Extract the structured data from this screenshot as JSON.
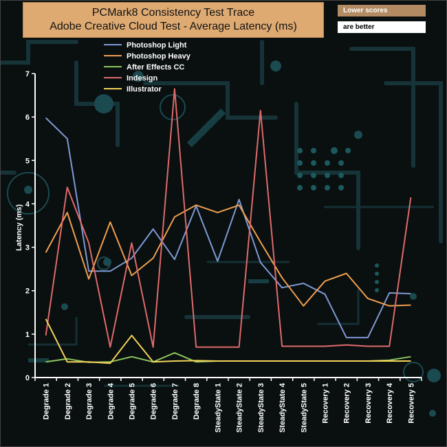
{
  "chart_data": {
    "type": "line",
    "title": "PCMark8 Consistency Test Trace",
    "subtitle": "Adobe Creative Cloud Test -  Average Latency (ms)",
    "note_top": "Lower scores",
    "note_bottom": "are better",
    "xlabel": "",
    "ylabel": "Latency (ms)",
    "ylim": [
      0,
      7
    ],
    "yticks": [
      "0",
      "1",
      "2",
      "3",
      "4",
      "5",
      "6",
      "7"
    ],
    "categories": [
      "Degrade 1",
      "Degrade 2",
      "Degrade 3",
      "Degrade 4",
      "Degrade 5",
      "Degrade 6",
      "Degrade 7",
      "Degrade 8",
      "SteadyState 1",
      "SteadyState 2",
      "SteadyState 3",
      "SteadyState 4",
      "SteadyState 5",
      "Recovery 1",
      "Recovery 2",
      "Recovery 3",
      "Recovery 4",
      "Recovery 5"
    ],
    "series": [
      {
        "name": "Photoshop Light",
        "color": "#7f9bd4",
        "values": [
          5.98,
          5.5,
          2.45,
          2.45,
          2.75,
          3.42,
          2.72,
          3.95,
          2.68,
          4.1,
          2.65,
          2.07,
          2.17,
          1.92,
          0.92,
          0.92,
          1.95,
          1.93
        ]
      },
      {
        "name": " Photoshop Heavy",
        "color": "#f0a050",
        "values": [
          2.88,
          3.8,
          2.27,
          3.58,
          2.35,
          2.75,
          3.7,
          3.97,
          3.8,
          3.97,
          3.12,
          2.3,
          1.65,
          2.22,
          2.4,
          1.82,
          1.65,
          1.67
        ]
      },
      {
        "name": "After Effects CC",
        "color": "#8fc860",
        "values": [
          0.36,
          0.43,
          0.35,
          0.36,
          0.48,
          0.36,
          0.57,
          0.36,
          0.38,
          0.38,
          0.38,
          0.38,
          0.38,
          0.38,
          0.38,
          0.38,
          0.4,
          0.48
        ]
      },
      {
        "name": "Indesign",
        "color": "#e06b6b",
        "values": [
          0.97,
          4.38,
          3.1,
          0.7,
          3.1,
          0.7,
          6.65,
          0.7,
          0.7,
          0.7,
          6.15,
          0.72,
          0.72,
          0.72,
          0.75,
          0.72,
          0.72,
          4.15
        ]
      },
      {
        "name": "Illustrator",
        "color": "#f5d35a",
        "values": [
          1.35,
          0.36,
          0.36,
          0.33,
          0.97,
          0.36,
          0.38,
          0.39,
          0.38,
          0.38,
          0.38,
          0.38,
          0.38,
          0.38,
          0.38,
          0.38,
          0.38,
          0.38
        ]
      }
    ],
    "legend_position": "top-left"
  }
}
